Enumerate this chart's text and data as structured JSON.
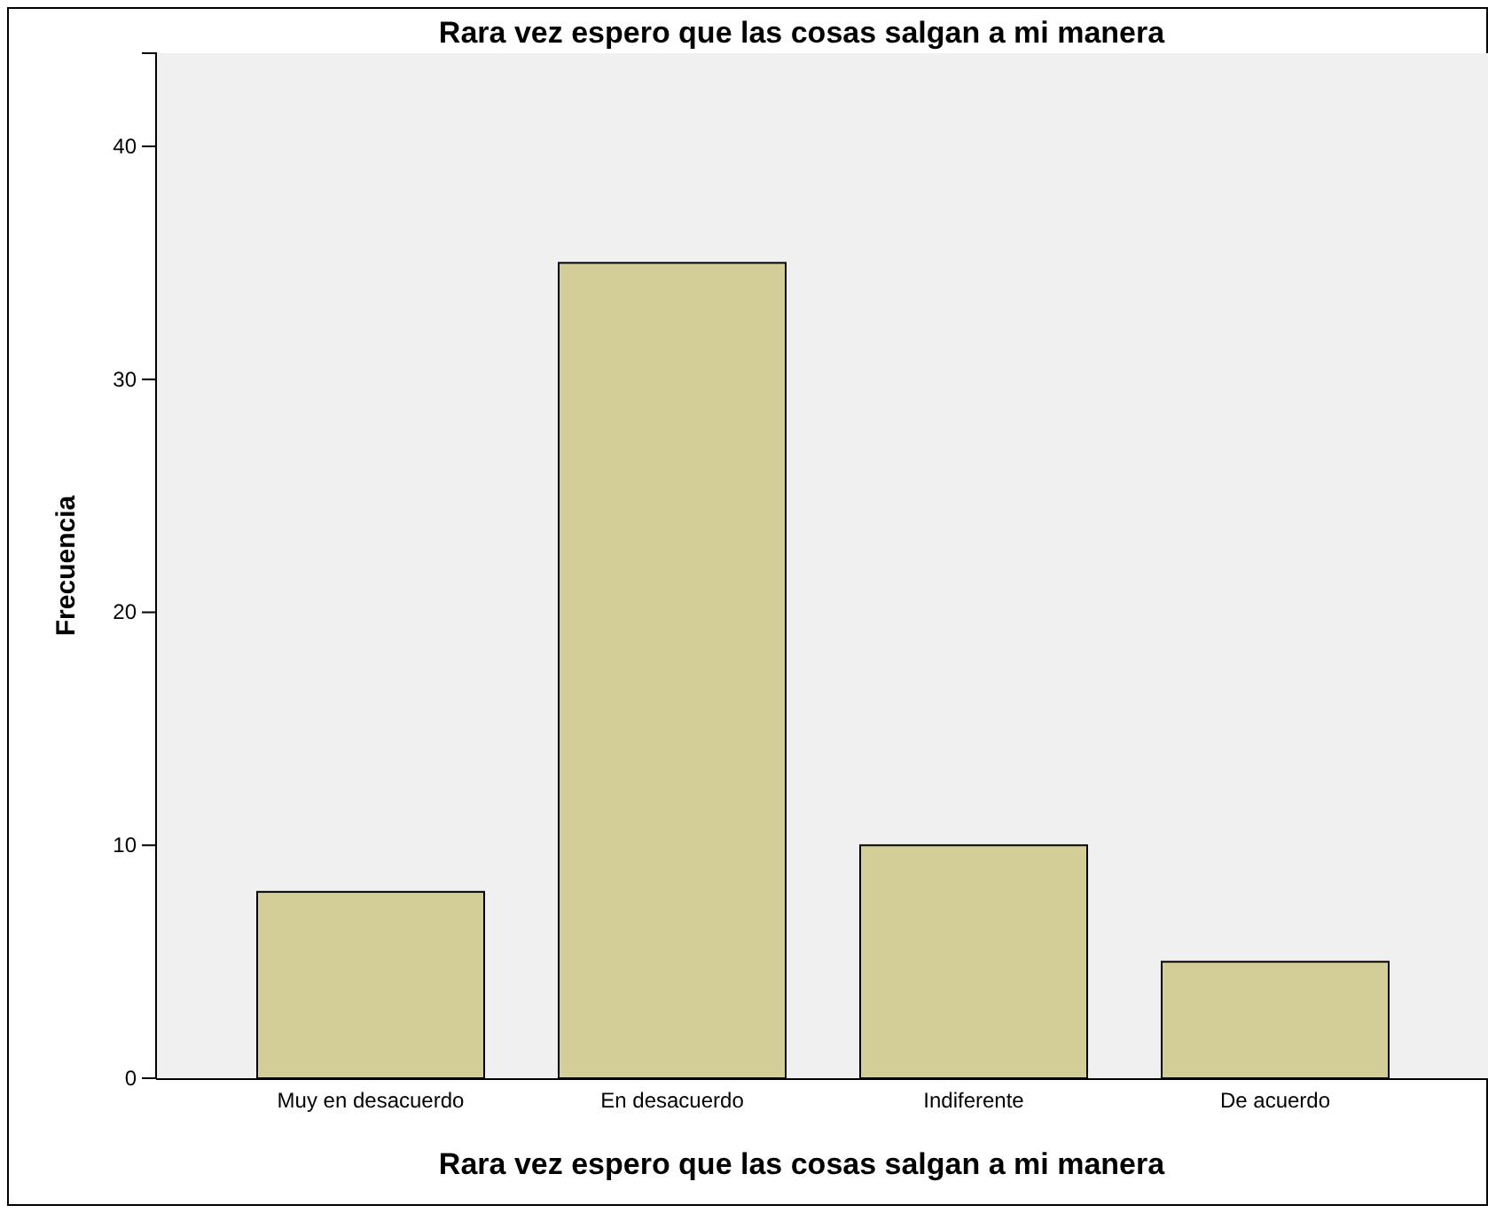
{
  "chart_data": {
    "type": "bar",
    "title": "Rara vez espero que las cosas salgan a mi manera",
    "xlabel": "Rara vez espero que las cosas salgan a mi manera",
    "ylabel": "Frecuencia",
    "categories": [
      "Muy en desacuerdo",
      "En desacuerdo",
      "Indiferente",
      "De acuerdo"
    ],
    "values": [
      8,
      35,
      10,
      5
    ],
    "color": "#d3ce97",
    "ylim": [
      0,
      44
    ],
    "yticks": [
      0,
      10,
      20,
      30,
      40
    ],
    "grid": false
  }
}
